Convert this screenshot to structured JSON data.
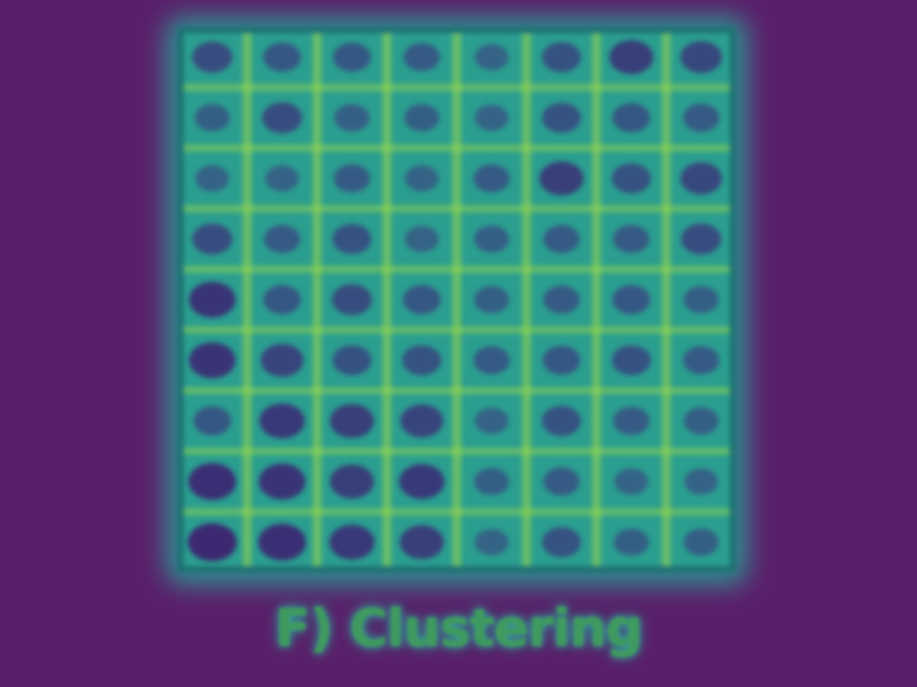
{
  "caption": "F) Clustering",
  "grid": {
    "rows": 9,
    "cols": 8
  },
  "palette": {
    "background": "#5a1f69",
    "panel_base": "#2a9e8f",
    "bright_line": "#9ad84a",
    "dark_blob": "#3d1d6e",
    "mid_blob": "#35608f"
  },
  "cell_levels": [
    [
      0.6,
      0.5,
      0.5,
      0.45,
      0.35,
      0.55,
      0.75,
      0.65
    ],
    [
      0.4,
      0.6,
      0.4,
      0.4,
      0.35,
      0.55,
      0.5,
      0.45
    ],
    [
      0.35,
      0.35,
      0.45,
      0.35,
      0.45,
      0.75,
      0.55,
      0.65
    ],
    [
      0.6,
      0.45,
      0.55,
      0.35,
      0.4,
      0.45,
      0.45,
      0.6
    ],
    [
      0.85,
      0.5,
      0.6,
      0.5,
      0.4,
      0.45,
      0.5,
      0.4
    ],
    [
      0.85,
      0.7,
      0.55,
      0.55,
      0.45,
      0.5,
      0.55,
      0.45
    ],
    [
      0.5,
      0.8,
      0.75,
      0.7,
      0.35,
      0.55,
      0.45,
      0.4
    ],
    [
      0.9,
      0.85,
      0.75,
      0.8,
      0.4,
      0.45,
      0.35,
      0.35
    ],
    [
      0.95,
      0.9,
      0.8,
      0.75,
      0.35,
      0.55,
      0.4,
      0.4
    ]
  ]
}
